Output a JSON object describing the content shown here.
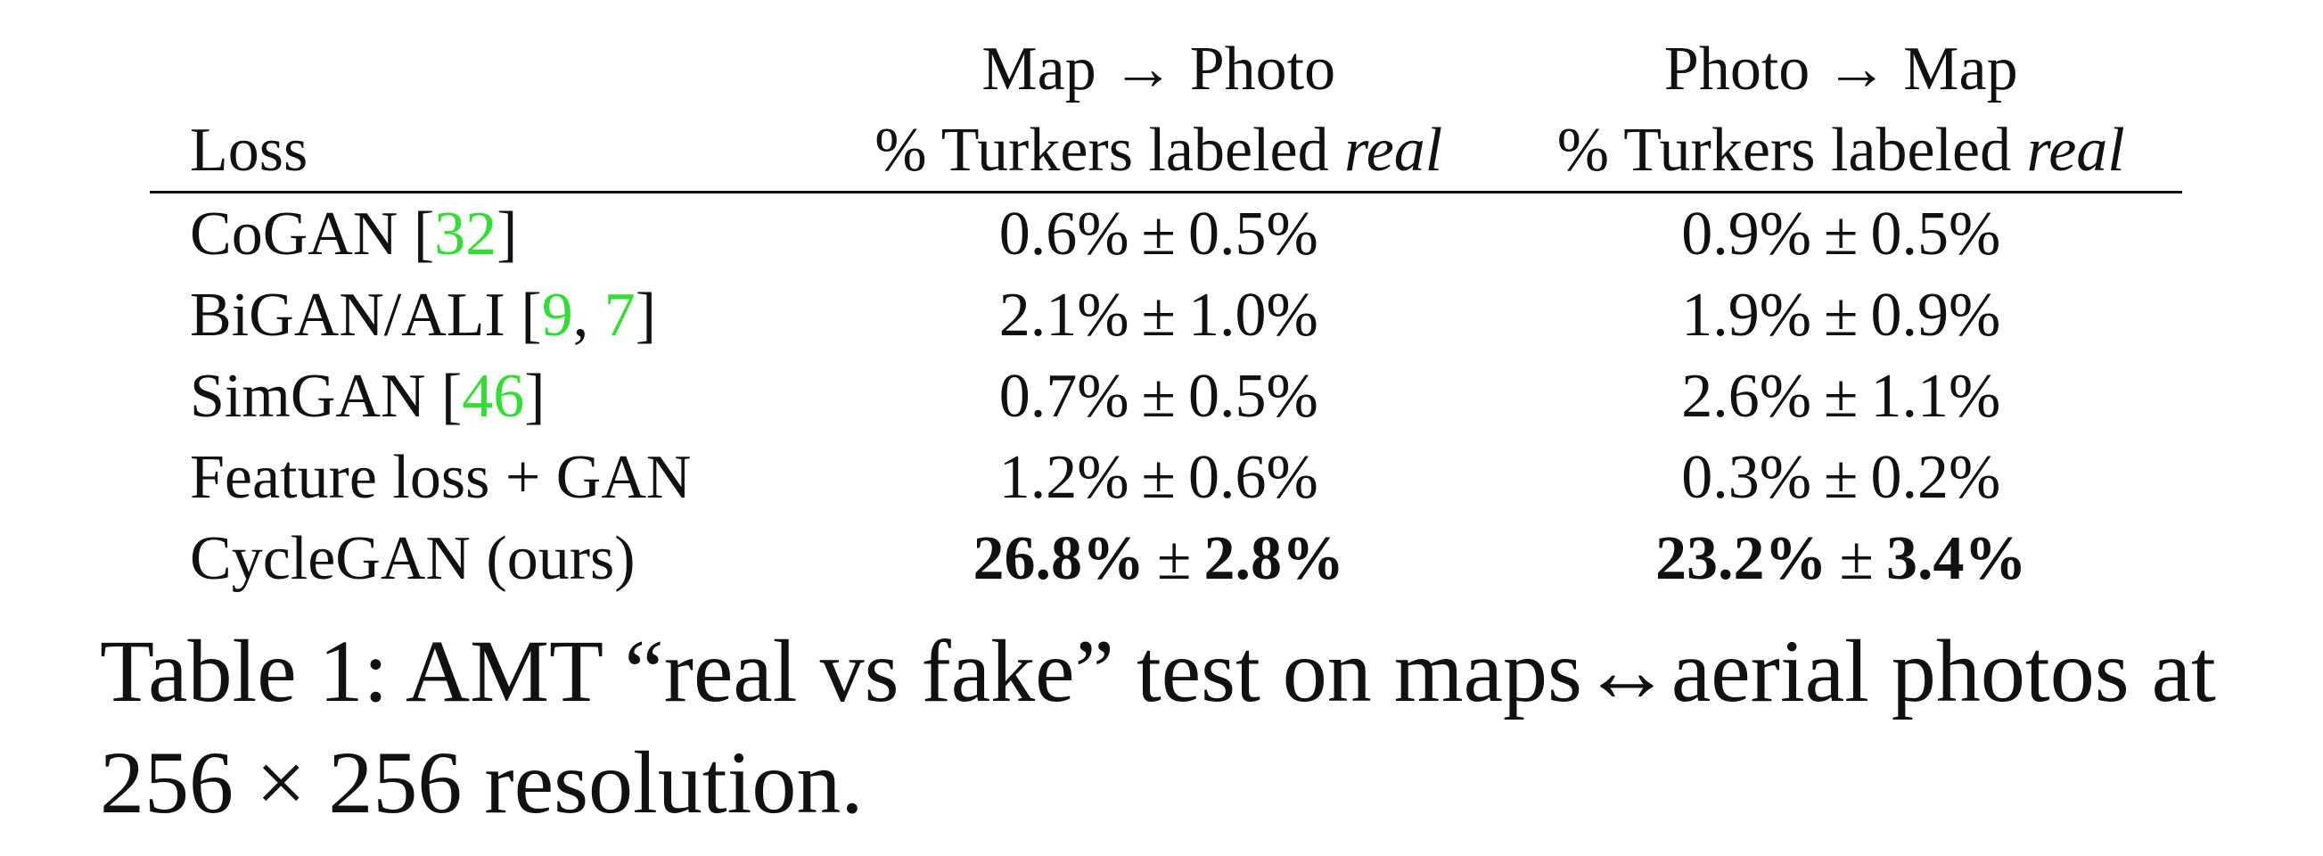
{
  "table": {
    "loss_header": "Loss",
    "col_a": {
      "direction": "Map → Photo",
      "subhead_prefix": "% Turkers labeled ",
      "subhead_em": "real"
    },
    "col_b": {
      "direction": "Photo → Map",
      "subhead_prefix": "% Turkers labeled ",
      "subhead_em": "real"
    },
    "pm": "±",
    "rows": [
      {
        "name": "CoGAN [",
        "cite1": "32",
        "sep": "",
        "cite2": "",
        "close": "]",
        "a_mean": "0.6%",
        "a_sd": "0.5%",
        "b_mean": "0.9%",
        "b_sd": "0.5%",
        "bold": false
      },
      {
        "name": "BiGAN/ALI [",
        "cite1": "9",
        "sep": ", ",
        "cite2": "7",
        "close": "]",
        "a_mean": "2.1%",
        "a_sd": "1.0%",
        "b_mean": "1.9%",
        "b_sd": "0.9%",
        "bold": false
      },
      {
        "name": "SimGAN [",
        "cite1": "46",
        "sep": "",
        "cite2": "",
        "close": "]",
        "a_mean": "0.7%",
        "a_sd": "0.5%",
        "b_mean": "2.6%",
        "b_sd": "1.1%",
        "bold": false
      },
      {
        "name": "Feature loss + GAN",
        "cite1": "",
        "sep": "",
        "cite2": "",
        "close": "",
        "a_mean": "1.2%",
        "a_sd": "0.6%",
        "b_mean": "0.3%",
        "b_sd": "0.2%",
        "bold": false
      },
      {
        "name": "CycleGAN (ours)",
        "cite1": "",
        "sep": "",
        "cite2": "",
        "close": "",
        "a_mean": "26.8%",
        "a_sd": "2.8%",
        "b_mean": "23.2%",
        "b_sd": "3.4%",
        "bold": true
      }
    ]
  },
  "caption": {
    "line1": "Table 1: AMT “real vs fake” test on maps↔aerial photos at",
    "line2": "256 × 256 resolution."
  },
  "colors": {
    "citation": "#33dd33",
    "text": "#111111"
  }
}
